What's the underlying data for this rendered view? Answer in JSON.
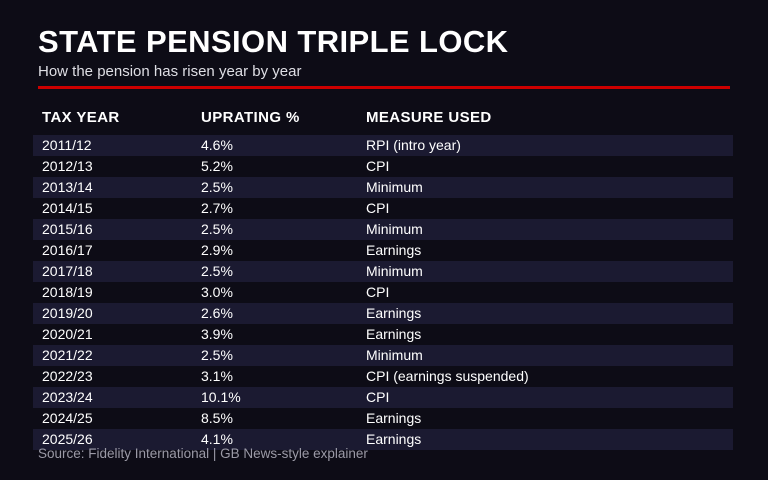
{
  "page": {
    "title": "STATE PENSION TRIPLE LOCK",
    "subtitle": "How the pension has risen year by year",
    "source": "Source: Fidelity International | GB News-style explainer"
  },
  "colors": {
    "background": "#0d0c16",
    "row_stripe": "#1b1a31",
    "accent_red": "#cc0000",
    "text_primary": "#ffffff",
    "text_secondary": "#dfdfe5",
    "text_muted": "#9b9aa6"
  },
  "chart_data": {
    "type": "table",
    "title": "STATE PENSION TRIPLE LOCK",
    "subtitle": "How the pension has risen year by year",
    "columns": [
      "TAX YEAR",
      "UPRATING %",
      "MEASURE USED"
    ],
    "rows": [
      [
        "2011/12",
        "4.6%",
        "RPI (intro year)"
      ],
      [
        "2012/13",
        "5.2%",
        "CPI"
      ],
      [
        "2013/14",
        "2.5%",
        "Minimum"
      ],
      [
        "2014/15",
        "2.7%",
        "CPI"
      ],
      [
        "2015/16",
        "2.5%",
        "Minimum"
      ],
      [
        "2016/17",
        "2.9%",
        "Earnings"
      ],
      [
        "2017/18",
        "2.5%",
        "Minimum"
      ],
      [
        "2018/19",
        "3.0%",
        "CPI"
      ],
      [
        "2019/20",
        "2.6%",
        "Earnings"
      ],
      [
        "2020/21",
        "3.9%",
        "Earnings"
      ],
      [
        "2021/22",
        "2.5%",
        "Minimum"
      ],
      [
        "2022/23",
        "3.1%",
        "CPI (earnings suspended)"
      ],
      [
        "2023/24",
        "10.1%",
        "CPI"
      ],
      [
        "2024/25",
        "8.5%",
        "Earnings"
      ],
      [
        "2025/26",
        "4.1%",
        "Earnings"
      ]
    ],
    "uprating_values_percent": [
      4.6,
      5.2,
      2.5,
      2.7,
      2.5,
      2.9,
      2.5,
      3.0,
      2.6,
      3.9,
      2.5,
      3.1,
      10.1,
      8.5,
      4.1
    ],
    "source": "Source: Fidelity International | GB News-style explainer",
    "layout_hints": {
      "striped_rows": "odd rows (1st, 3rd, ...) have lighter background",
      "grid": "off",
      "theme": "dark broadcast-news explainer graphic with red accent rule"
    }
  }
}
